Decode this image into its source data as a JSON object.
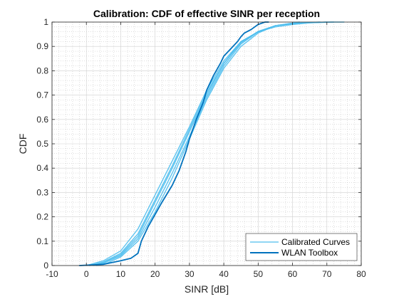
{
  "figure": {
    "background": "#ffffff"
  },
  "chart_data": {
    "type": "line",
    "title": "Calibration: CDF of effective SINR per reception",
    "xlabel": "SINR [dB]",
    "ylabel": "CDF",
    "xlim": [
      -10,
      80
    ],
    "ylim": [
      0,
      1
    ],
    "xticks": [
      -10,
      0,
      10,
      20,
      30,
      40,
      50,
      60,
      70,
      80
    ],
    "xtick_labels": [
      "-10",
      "0",
      "10",
      "20",
      "30",
      "40",
      "50",
      "60",
      "70",
      "80"
    ],
    "yticks": [
      0,
      0.1,
      0.2,
      0.3,
      0.4,
      0.5,
      0.6,
      0.7,
      0.8,
      0.9,
      1
    ],
    "ytick_labels": [
      "0",
      "0.1",
      "0.2",
      "0.3",
      "0.4",
      "0.5",
      "0.6",
      "0.7",
      "0.8",
      "0.9",
      "1"
    ],
    "grid": "major and minor (dotted)",
    "legend_position": "bottom-right",
    "legend": [
      {
        "label": "Calibrated Curves",
        "color": "#4dbeee",
        "style": "thin"
      },
      {
        "label": "WLAN Toolbox",
        "color": "#0072bd",
        "style": "thick"
      }
    ],
    "series": [
      {
        "group": "Calibrated Curves",
        "color": "#4dbeee",
        "x": [
          0,
          5,
          10,
          15,
          20,
          25,
          30,
          35,
          40,
          45,
          50,
          55,
          60,
          65,
          70,
          75
        ],
        "y": [
          0.0,
          0.02,
          0.06,
          0.15,
          0.29,
          0.43,
          0.57,
          0.72,
          0.84,
          0.92,
          0.96,
          0.985,
          0.993,
          0.997,
          1.0,
          1.0
        ]
      },
      {
        "group": "Calibrated Curves",
        "color": "#4dbeee",
        "x": [
          1,
          5,
          10,
          15,
          20,
          25,
          30,
          35,
          40,
          45,
          50,
          55,
          60,
          65,
          72
        ],
        "y": [
          0.0,
          0.015,
          0.05,
          0.13,
          0.27,
          0.41,
          0.56,
          0.71,
          0.83,
          0.92,
          0.96,
          0.98,
          0.99,
          0.997,
          1.0
        ]
      },
      {
        "group": "Calibrated Curves",
        "color": "#4dbeee",
        "x": [
          2,
          5,
          10,
          15,
          20,
          25,
          30,
          35,
          40,
          45,
          50,
          55,
          60,
          70
        ],
        "y": [
          0.0,
          0.01,
          0.04,
          0.11,
          0.24,
          0.38,
          0.53,
          0.69,
          0.82,
          0.91,
          0.96,
          0.985,
          0.995,
          1.0
        ]
      },
      {
        "group": "Calibrated Curves",
        "color": "#4dbeee",
        "x": [
          1,
          5,
          10,
          15,
          20,
          25,
          30,
          35,
          40,
          45,
          50,
          55,
          60,
          68
        ],
        "y": [
          0.0,
          0.012,
          0.045,
          0.12,
          0.26,
          0.4,
          0.55,
          0.7,
          0.83,
          0.915,
          0.962,
          0.985,
          0.995,
          1.0
        ]
      },
      {
        "group": "Calibrated Curves",
        "color": "#4dbeee",
        "x": [
          3,
          6,
          10,
          15,
          20,
          25,
          30,
          35,
          40,
          45,
          50,
          55,
          62
        ],
        "y": [
          0.0,
          0.01,
          0.035,
          0.1,
          0.22,
          0.36,
          0.52,
          0.68,
          0.81,
          0.9,
          0.955,
          0.985,
          1.0
        ]
      },
      {
        "group": "WLAN Toolbox",
        "color": "#0072bd",
        "x": [
          -2,
          5,
          10,
          13,
          15,
          16,
          18,
          20,
          22,
          25,
          27,
          29,
          30,
          32,
          34,
          35,
          37,
          39,
          40,
          42,
          44,
          45,
          46,
          48,
          49,
          50,
          51,
          52,
          53
        ],
        "y": [
          0.0,
          0.005,
          0.02,
          0.03,
          0.05,
          0.1,
          0.16,
          0.21,
          0.26,
          0.33,
          0.39,
          0.47,
          0.52,
          0.6,
          0.67,
          0.72,
          0.78,
          0.83,
          0.86,
          0.89,
          0.92,
          0.94,
          0.955,
          0.97,
          0.98,
          0.99,
          0.995,
          1.0,
          1.0
        ]
      }
    ]
  }
}
